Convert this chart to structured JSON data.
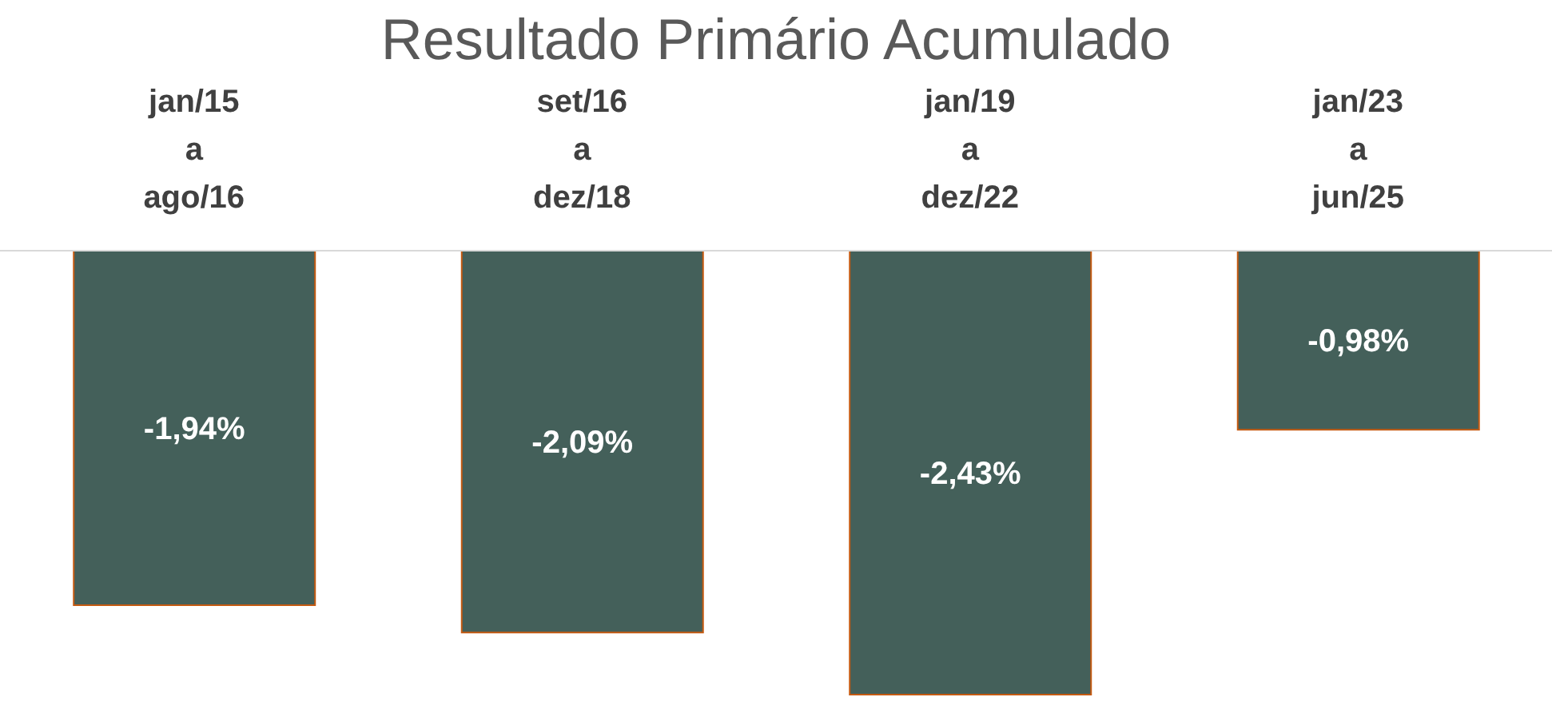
{
  "chart_data": {
    "type": "bar",
    "title": "Resultado Primário Acumulado",
    "categories": [
      "jan/15\na\nago/16",
      "set/16\na\ndez/18",
      "jan/19\na\ndez/22",
      "jan/23\na\njun/25"
    ],
    "values": [
      -1.94,
      -2.09,
      -2.43,
      -0.98
    ],
    "value_labels": [
      "-1,94%",
      "-2,09%",
      "-2,43%",
      "-0,98%"
    ],
    "color": "#44605a"
  }
}
